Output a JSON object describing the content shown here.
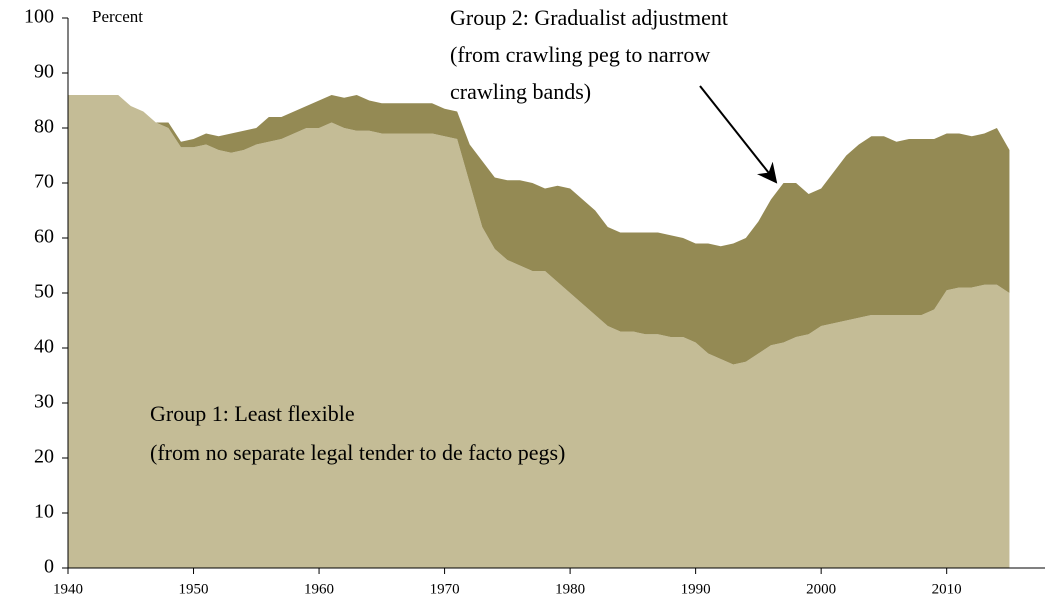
{
  "chart_data": {
    "type": "stacked-area",
    "y_axis_label": "Percent",
    "annotations": [
      {
        "lines": [
          "Group 2: Gradualist adjustment",
          "(from crawling peg to narrow",
          "crawling bands)"
        ]
      },
      {
        "lines": [
          "Group 1: Least flexible",
          "(from no separate legal tender to de facto pegs)"
        ]
      }
    ],
    "x": [
      1940,
      1941,
      1942,
      1943,
      1944,
      1945,
      1946,
      1947,
      1948,
      1949,
      1950,
      1951,
      1952,
      1953,
      1954,
      1955,
      1956,
      1957,
      1958,
      1959,
      1960,
      1961,
      1962,
      1963,
      1964,
      1965,
      1966,
      1967,
      1968,
      1969,
      1970,
      1971,
      1972,
      1973,
      1974,
      1975,
      1976,
      1977,
      1978,
      1979,
      1980,
      1981,
      1982,
      1983,
      1984,
      1985,
      1986,
      1987,
      1988,
      1989,
      1990,
      1991,
      1992,
      1993,
      1994,
      1995,
      1996,
      1997,
      1998,
      1999,
      2000,
      2001,
      2002,
      2003,
      2004,
      2005,
      2006,
      2007,
      2008,
      2009,
      2010,
      2011,
      2012,
      2013,
      2014,
      2015
    ],
    "series": [
      {
        "name": "Group 1: Least flexible",
        "color": "#c4bc96",
        "values": [
          86,
          86,
          86,
          86,
          86,
          84,
          83,
          81,
          80,
          76.5,
          76.5,
          77,
          76,
          75.5,
          76,
          77,
          77.5,
          78,
          79,
          80,
          80,
          81,
          80,
          79.5,
          79.5,
          79,
          79,
          79,
          79,
          79,
          78.5,
          78,
          70,
          62,
          58,
          56,
          55,
          54,
          54,
          52,
          50,
          48,
          46,
          44,
          43,
          43,
          42.5,
          42.5,
          42,
          42,
          41,
          39,
          38,
          37,
          37.5,
          39,
          40.5,
          41,
          42,
          42.5,
          44,
          44.5,
          45,
          45.5,
          46,
          46,
          46,
          46,
          46,
          47,
          50.5,
          51,
          51,
          51.5,
          51.5,
          50
        ]
      },
      {
        "name": "Group 2: Gradualist adjustment",
        "color": "#948a54",
        "values": [
          0,
          0,
          0,
          0,
          0,
          0,
          0,
          0,
          1,
          1,
          1.5,
          2,
          2.5,
          3.5,
          3.5,
          3,
          4.5,
          4,
          4,
          4,
          5,
          5,
          5.5,
          6.5,
          5.5,
          5.5,
          5.5,
          5.5,
          5.5,
          5.5,
          5,
          5,
          7,
          12,
          13,
          14.5,
          15.5,
          16,
          15,
          17.5,
          19,
          19,
          19,
          18,
          18,
          18,
          18.5,
          18.5,
          18.5,
          18,
          18,
          20,
          20.5,
          22,
          22.5,
          24,
          26.5,
          29,
          28,
          25.5,
          25,
          27.5,
          30,
          31.5,
          32.5,
          32.5,
          31.5,
          32,
          32,
          31,
          28.5,
          28,
          27.5,
          27.5,
          28.5,
          26
        ]
      }
    ],
    "xlim": [
      1940,
      2016
    ],
    "xticks": [
      1940,
      1950,
      1960,
      1970,
      1980,
      1990,
      2000,
      2010
    ],
    "ylim": [
      0,
      100
    ],
    "yticks": [
      0,
      10,
      20,
      30,
      40,
      50,
      60,
      70,
      80,
      90,
      100
    ],
    "grid": false
  }
}
